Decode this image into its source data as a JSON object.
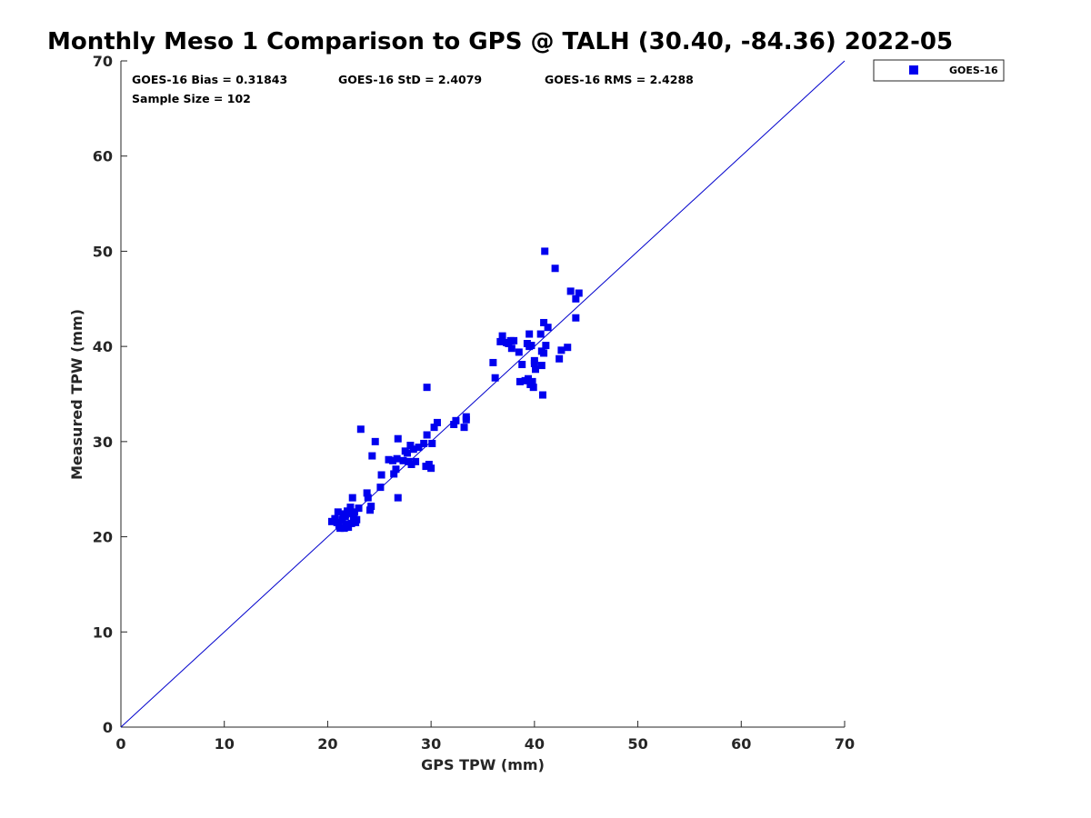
{
  "chart_data": {
    "type": "scatter",
    "title": "Monthly Meso 1 Comparison to GPS @ TALH (30.40, -84.36) 2022-05",
    "xlabel": "GPS TPW (mm)",
    "ylabel": "Measured TPW (mm)",
    "xlim": [
      0,
      70
    ],
    "ylim": [
      0,
      70
    ],
    "xticks": [
      "0",
      "10",
      "20",
      "30",
      "40",
      "50",
      "60",
      "70"
    ],
    "yticks": [
      "0",
      "10",
      "20",
      "30",
      "40",
      "50",
      "60",
      "70"
    ],
    "grid": false,
    "legend_position": "top-right-outside",
    "colors": {
      "series": "#0000ee",
      "reference_line": "#0000cc",
      "axis": "#262626"
    },
    "stats": {
      "bias": "GOES-16 Bias = 0.31843",
      "std": "GOES-16 StD = 2.4079",
      "rms": "GOES-16 RMS = 2.4288",
      "sample_size": "Sample Size = 102"
    },
    "reference_line": {
      "from": [
        0,
        0
      ],
      "to": [
        70,
        70
      ]
    },
    "series": [
      {
        "name": "GOES-16",
        "marker": "square",
        "points": [
          [
            20.4,
            21.6
          ],
          [
            20.7,
            21.9
          ],
          [
            20.9,
            21.5
          ],
          [
            21.0,
            22.6
          ],
          [
            21.1,
            21.2
          ],
          [
            21.2,
            20.9
          ],
          [
            21.4,
            21.8
          ],
          [
            21.5,
            22.4
          ],
          [
            21.6,
            20.9
          ],
          [
            21.7,
            22.1
          ],
          [
            21.8,
            21.3
          ],
          [
            21.9,
            22.7
          ],
          [
            22.0,
            21.0
          ],
          [
            22.1,
            22.5
          ],
          [
            22.2,
            23.1
          ],
          [
            22.3,
            21.4
          ],
          [
            22.4,
            24.1
          ],
          [
            22.6,
            22.6
          ],
          [
            22.7,
            21.5
          ],
          [
            22.8,
            21.8
          ],
          [
            23.0,
            23.0
          ],
          [
            23.2,
            31.3
          ],
          [
            23.8,
            24.6
          ],
          [
            23.9,
            24.1
          ],
          [
            24.1,
            22.8
          ],
          [
            24.2,
            23.2
          ],
          [
            24.3,
            28.5
          ],
          [
            24.6,
            30.0
          ],
          [
            25.1,
            25.2
          ],
          [
            25.2,
            26.5
          ],
          [
            25.9,
            28.1
          ],
          [
            26.3,
            28.0
          ],
          [
            26.4,
            26.6
          ],
          [
            26.6,
            27.1
          ],
          [
            26.7,
            28.2
          ],
          [
            26.8,
            30.3
          ],
          [
            26.8,
            24.1
          ],
          [
            27.3,
            28.0
          ],
          [
            27.7,
            28.8
          ],
          [
            27.8,
            27.9
          ],
          [
            28.0,
            29.6
          ],
          [
            28.1,
            27.6
          ],
          [
            28.3,
            29.2
          ],
          [
            28.5,
            27.9
          ],
          [
            28.8,
            29.4
          ],
          [
            29.3,
            29.8
          ],
          [
            29.5,
            27.4
          ],
          [
            29.6,
            30.7
          ],
          [
            29.6,
            35.7
          ],
          [
            29.8,
            27.6
          ],
          [
            30.0,
            27.2
          ],
          [
            30.1,
            29.8
          ],
          [
            30.3,
            31.5
          ],
          [
            30.6,
            32.0
          ],
          [
            32.2,
            31.8
          ],
          [
            32.4,
            32.2
          ],
          [
            33.2,
            31.5
          ],
          [
            33.4,
            32.6
          ],
          [
            33.4,
            32.3
          ],
          [
            36.0,
            38.3
          ],
          [
            36.2,
            36.7
          ],
          [
            36.7,
            40.5
          ],
          [
            36.9,
            41.1
          ],
          [
            37.3,
            40.4
          ],
          [
            37.5,
            40.3
          ],
          [
            37.7,
            40.6
          ],
          [
            37.8,
            39.8
          ],
          [
            38.0,
            40.6
          ],
          [
            38.5,
            39.4
          ],
          [
            38.6,
            36.3
          ],
          [
            38.8,
            38.1
          ],
          [
            39.1,
            36.4
          ],
          [
            39.3,
            40.3
          ],
          [
            39.4,
            36.6
          ],
          [
            39.5,
            40.0
          ],
          [
            39.5,
            41.3
          ],
          [
            39.6,
            36.0
          ],
          [
            39.8,
            36.3
          ],
          [
            39.9,
            35.7
          ],
          [
            40.0,
            38.2
          ],
          [
            40.0,
            38.5
          ],
          [
            40.1,
            37.6
          ],
          [
            40.6,
            41.3
          ],
          [
            40.7,
            39.5
          ],
          [
            40.7,
            38.0
          ],
          [
            40.8,
            34.9
          ],
          [
            40.9,
            42.5
          ],
          [
            40.9,
            39.3
          ],
          [
            41.0,
            50.0
          ],
          [
            41.1,
            40.1
          ],
          [
            41.3,
            42.0
          ],
          [
            42.0,
            48.2
          ],
          [
            42.4,
            38.7
          ],
          [
            42.6,
            39.6
          ],
          [
            43.2,
            39.9
          ],
          [
            43.5,
            45.8
          ],
          [
            44.0,
            45.0
          ],
          [
            44.0,
            43.0
          ],
          [
            44.3,
            45.6
          ],
          [
            22.5,
            22.0
          ],
          [
            27.5,
            29.0
          ],
          [
            39.7,
            40.1
          ]
        ]
      }
    ]
  }
}
